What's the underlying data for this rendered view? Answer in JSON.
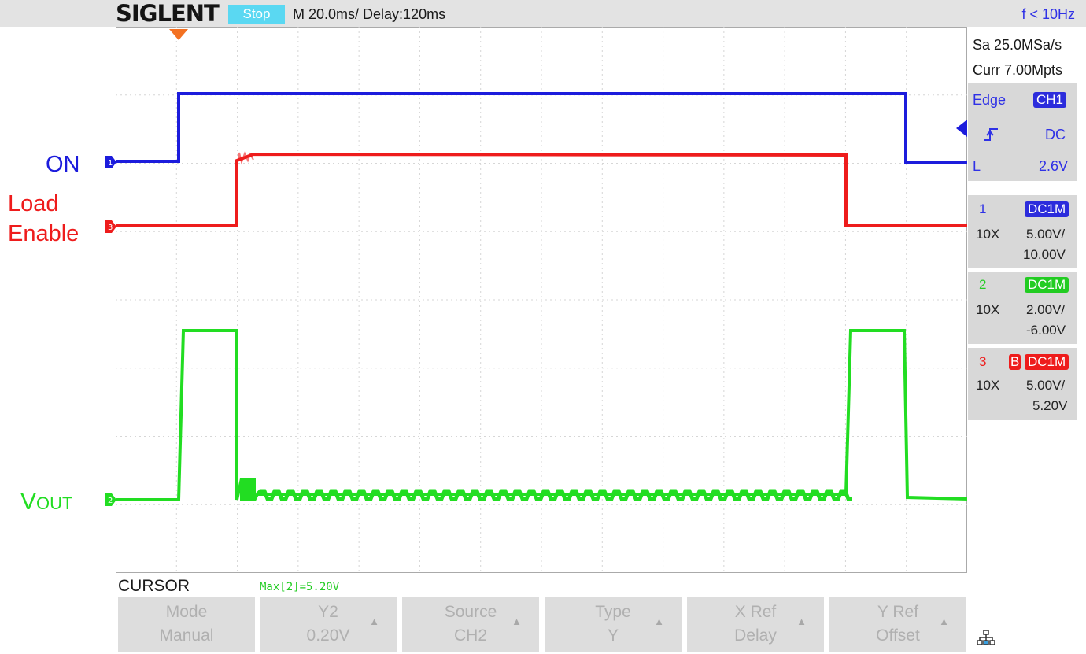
{
  "header": {
    "brand": "SIGLENT",
    "status": "Stop",
    "timebase": "M 20.0ms/ Delay:120ms",
    "frequency": "f < 10Hz"
  },
  "acquisition": {
    "sample_rate": "Sa 25.0MSa/s",
    "memory": "Curr 7.00Mpts"
  },
  "trigger": {
    "type": "Edge",
    "source": "CH1",
    "slope_icon": "rising-edge-icon",
    "coupling": "DC",
    "level_label": "L",
    "level": "2.6V"
  },
  "channels": [
    {
      "number": "1",
      "coupling": "DC1M",
      "probe": "10X",
      "scale": "5.00V/",
      "offset": "10.00V",
      "color": "#1c1cdc"
    },
    {
      "number": "2",
      "coupling": "DC1M",
      "probe": "10X",
      "scale": "2.00V/",
      "offset": "-6.00V",
      "color": "#22dd22"
    },
    {
      "number": "3",
      "coupling": "DC1M",
      "bw_limit": "B",
      "probe": "10X",
      "scale": "5.00V/",
      "offset": "5.20V",
      "color": "#ee1c1c"
    }
  ],
  "trace_labels": {
    "on": "ON",
    "load_line1": "Load",
    "load_line2": "Enable",
    "vout_main": "V",
    "vout_sub": "OUT"
  },
  "cursor": {
    "menu_title": "CURSOR",
    "measurement": "Max[2]=5.20V"
  },
  "softkeys": [
    {
      "title": "Mode",
      "value": "Manual",
      "has_arrow": false
    },
    {
      "title": "Y2",
      "value": "0.20V",
      "has_arrow": true
    },
    {
      "title": "Source",
      "value": "CH2",
      "has_arrow": true
    },
    {
      "title": "Type",
      "value": "Y",
      "has_arrow": true
    },
    {
      "title": "X Ref",
      "value": "Delay",
      "has_arrow": true
    },
    {
      "title": "Y Ref",
      "value": "Offset",
      "has_arrow": true
    }
  ],
  "status_icons": {
    "network": "network-icon"
  }
}
